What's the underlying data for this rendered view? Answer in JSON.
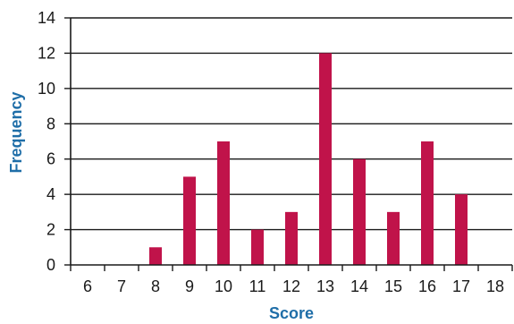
{
  "chart_data": {
    "type": "bar",
    "title": "",
    "xlabel": "Score",
    "ylabel": "Frequency",
    "categories": [
      "6",
      "7",
      "8",
      "9",
      "10",
      "11",
      "12",
      "13",
      "14",
      "15",
      "16",
      "17",
      "18"
    ],
    "values": [
      0,
      0,
      1,
      5,
      7,
      2,
      3,
      12,
      6,
      3,
      7,
      4,
      0
    ],
    "ylim": [
      0,
      14
    ],
    "yticks": [
      0,
      2,
      4,
      6,
      8,
      10,
      12,
      14
    ],
    "grid": "horizontal",
    "bar_color": "#c0134a",
    "axis_title_color": "#1f6ea8",
    "grid_color": "#1a1a1a"
  }
}
